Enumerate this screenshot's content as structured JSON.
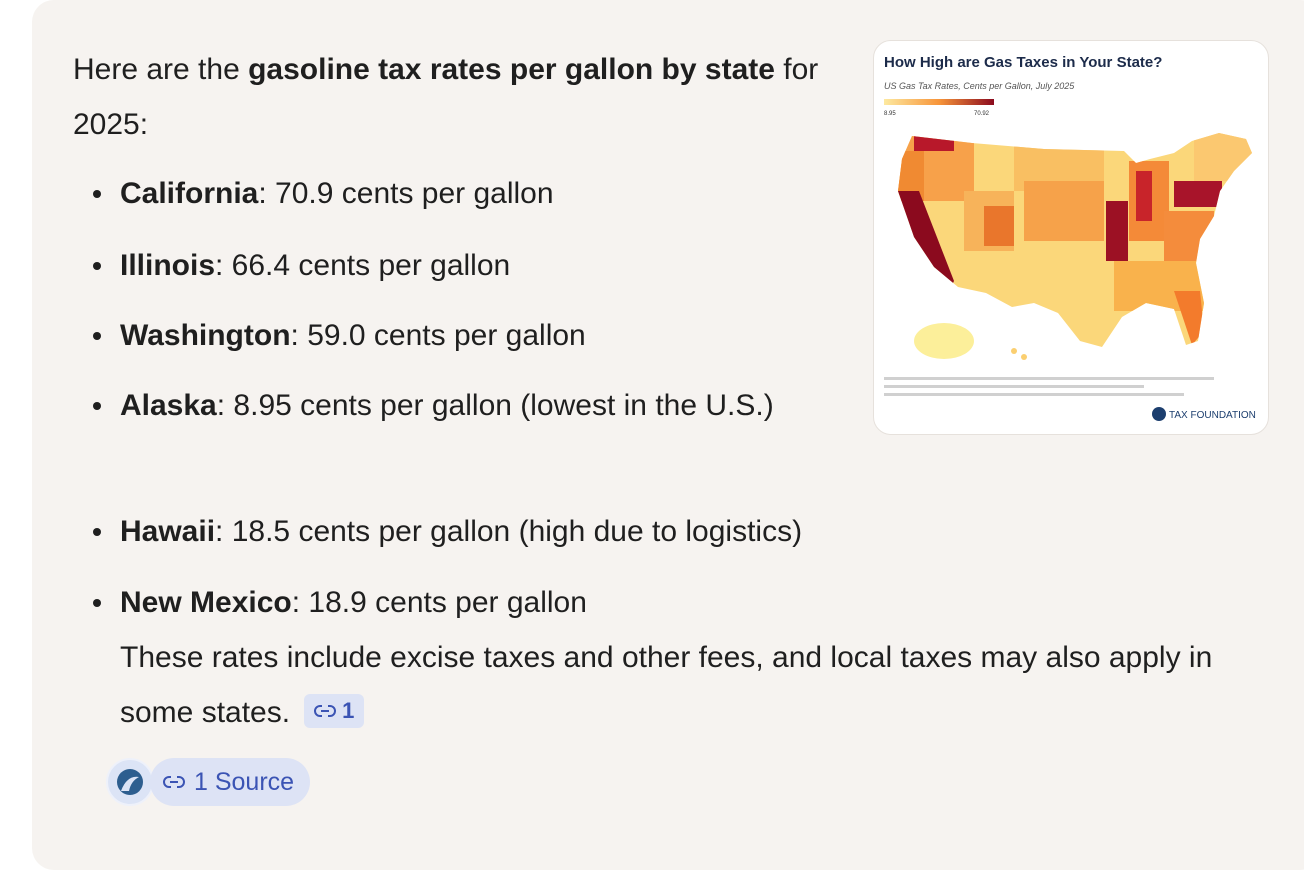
{
  "answer": {
    "intro": {
      "prefix": "Here are the ",
      "bold": "gasoline tax rates per gallon by state",
      "suffix": " for 2025:"
    },
    "items": [
      {
        "name": "California",
        "text": ": 70.9 cents per gallon"
      },
      {
        "name": "Illinois",
        "text": ": 66.4 cents per gallon"
      },
      {
        "name": "Washington",
        "text": ": 59.0 cents per gallon"
      },
      {
        "name": "Alaska",
        "text": ": 8.95 cents per gallon (lowest in the U.S.)"
      },
      {
        "name": "Hawaii",
        "text": ": 18.5 cents per gallon (high due to logistics)"
      },
      {
        "name": "New Mexico",
        "text": ": 18.9 cents per gallon"
      }
    ],
    "note": "These rates include excise taxes and other fees, and local taxes may also apply in some states.",
    "citation": "1",
    "sources": "1 Source"
  },
  "image": {
    "title": "How High are Gas Taxes in Your State?",
    "subtitle": "US Gas Tax Rates, Cents per Gallon, July 2025",
    "legend_min": "8.95",
    "legend_max": "70.92",
    "brand": "TAX FOUNDATION"
  }
}
